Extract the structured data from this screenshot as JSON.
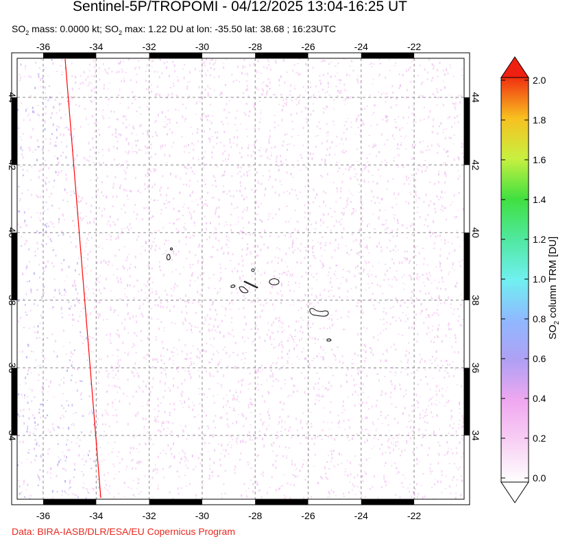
{
  "title": "Sentinel-5P/TROPOMI - 04/12/2025 13:04-16:25 UT",
  "subtitle": {
    "so2_a": "SO",
    "sub_a": "2",
    "mass_text": " mass: 0.0000 kt; SO",
    "sub_b": "2",
    "max_text": " max: 1.22 DU at lon: -35.50 lat: 38.68 ; 16:23UTC"
  },
  "map": {
    "lon_ticks": [
      "-36",
      "-34",
      "-32",
      "-30",
      "-28",
      "-26",
      "-24",
      "-22"
    ],
    "lat_ticks": [
      "44",
      "42",
      "40",
      "38",
      "36",
      "34"
    ],
    "background_noise_color": "#f6c8f4",
    "orbit_edge_color": "#ff0000",
    "contour_color": "#000000"
  },
  "colorbar": {
    "title_a": "SO",
    "title_sub": "2",
    "title_b": " column TRM [DU]",
    "labels": [
      "0.0",
      "0.2",
      "0.4",
      "0.6",
      "0.8",
      "1.0",
      "1.2",
      "1.4",
      "1.6",
      "1.8",
      "2.0"
    ],
    "colors": [
      "#ffffff",
      "#f8d0f4",
      "#f0a8f0",
      "#b0a0f4",
      "#90b8ff",
      "#70f0f0",
      "#50e8a0",
      "#40e040",
      "#c8f040",
      "#f8c020",
      "#f03010"
    ],
    "over_color": "#f02010"
  },
  "credit": "Data: BIRA-IASB/DLR/ESA/EU Copernicus Program"
}
